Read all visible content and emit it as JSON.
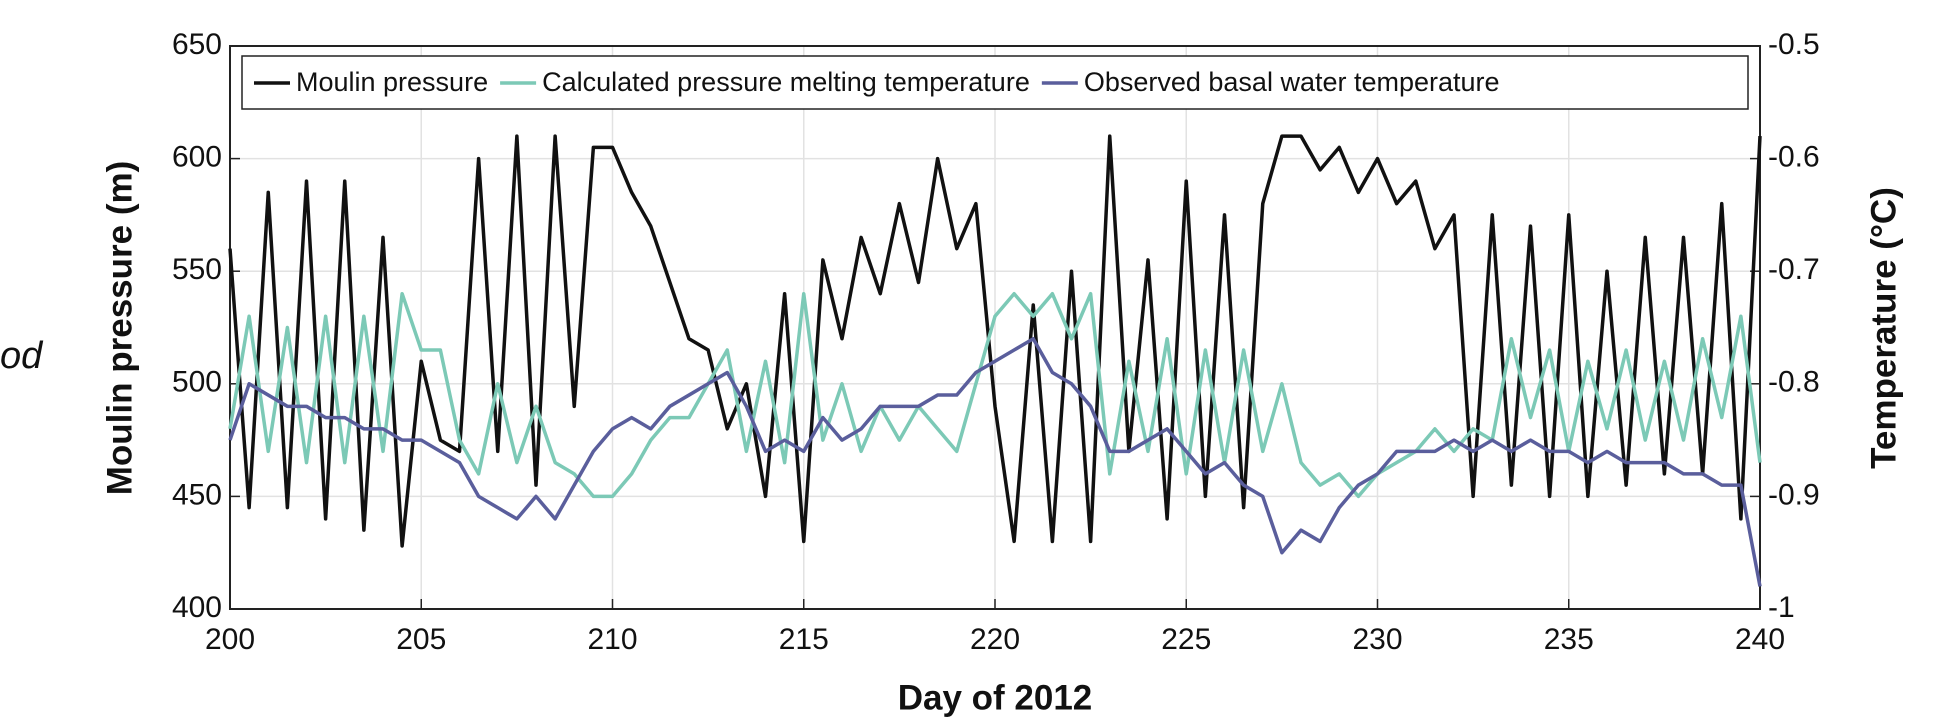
{
  "chart_data": {
    "type": "line",
    "side_text": "od",
    "xlabel": "Day of 2012",
    "ylabel": "Moulin pressure (m)",
    "y2label": "Temperature (°C)",
    "xlim": [
      200,
      240
    ],
    "xticks": [
      200,
      205,
      210,
      215,
      220,
      225,
      230,
      235,
      240
    ],
    "ylim": [
      400,
      650
    ],
    "yticks": [
      400,
      450,
      500,
      550,
      600,
      650
    ],
    "y2lim": [
      -1,
      -0.5
    ],
    "y2ticks": [
      -1,
      -0.9,
      -0.8,
      -0.7,
      -0.6,
      -0.5
    ],
    "grid": true,
    "legend": "top",
    "x": [
      200,
      200.5,
      201,
      201.5,
      202,
      202.5,
      203,
      203.5,
      204,
      204.5,
      205,
      205.5,
      206,
      206.5,
      207,
      207.5,
      208,
      208.5,
      209,
      209.5,
      210,
      210.5,
      211,
      211.5,
      212,
      212.5,
      213,
      213.5,
      214,
      214.5,
      215,
      215.5,
      216,
      216.5,
      217,
      217.5,
      218,
      218.5,
      219,
      219.5,
      220,
      220.5,
      221,
      221.5,
      222,
      222.5,
      223,
      223.5,
      224,
      224.5,
      225,
      225.5,
      226,
      226.5,
      227,
      227.5,
      228,
      228.5,
      229,
      229.5,
      230,
      230.5,
      231,
      231.5,
      232,
      232.5,
      233,
      233.5,
      234,
      234.5,
      235,
      235.5,
      236,
      236.5,
      237,
      237.5,
      238,
      238.5,
      239,
      239.5,
      240
    ],
    "series": [
      {
        "name": "Moulin pressure",
        "color": "#111111",
        "values": [
          560,
          445,
          585,
          445,
          590,
          440,
          590,
          435,
          565,
          428,
          510,
          475,
          470,
          600,
          470,
          610,
          455,
          610,
          490,
          605,
          605,
          585,
          570,
          545,
          520,
          515,
          480,
          500,
          450,
          540,
          430,
          555,
          520,
          565,
          540,
          580,
          545,
          600,
          560,
          580,
          490,
          430,
          535,
          430,
          550,
          430,
          610,
          470,
          555,
          440,
          590,
          450,
          575,
          445,
          580,
          610,
          610,
          595,
          605,
          585,
          600,
          580,
          590,
          560,
          575,
          450,
          575,
          455,
          570,
          450,
          575,
          450,
          550,
          455,
          565,
          460,
          565,
          460,
          580,
          440,
          610
        ]
      },
      {
        "name": "Calculated pressure melting temperature",
        "color": "#7cc9b6",
        "axis": "y2",
        "values": [
          -0.84,
          -0.74,
          -0.86,
          -0.75,
          -0.87,
          -0.74,
          -0.87,
          -0.74,
          -0.86,
          -0.72,
          -0.77,
          -0.77,
          -0.85,
          -0.88,
          -0.8,
          -0.87,
          -0.82,
          -0.87,
          -0.88,
          -0.9,
          -0.9,
          -0.88,
          -0.85,
          -0.83,
          -0.83,
          -0.8,
          -0.77,
          -0.86,
          -0.78,
          -0.87,
          -0.72,
          -0.85,
          -0.8,
          -0.86,
          -0.82,
          -0.85,
          -0.82,
          -0.84,
          -0.86,
          -0.8,
          -0.74,
          -0.72,
          -0.74,
          -0.72,
          -0.76,
          -0.72,
          -0.88,
          -0.78,
          -0.86,
          -0.76,
          -0.88,
          -0.77,
          -0.87,
          -0.77,
          -0.86,
          -0.8,
          -0.87,
          -0.89,
          -0.88,
          -0.9,
          -0.88,
          -0.87,
          -0.86,
          -0.84,
          -0.86,
          -0.84,
          -0.85,
          -0.76,
          -0.83,
          -0.77,
          -0.86,
          -0.78,
          -0.84,
          -0.77,
          -0.85,
          -0.78,
          -0.85,
          -0.76,
          -0.83,
          -0.74,
          -0.87
        ]
      },
      {
        "name": "Observed basal water temperature",
        "color": "#5a5e9c",
        "axis": "y2",
        "values": [
          -0.85,
          -0.8,
          -0.81,
          -0.82,
          -0.82,
          -0.83,
          -0.83,
          -0.84,
          -0.84,
          -0.85,
          -0.85,
          -0.86,
          -0.87,
          -0.9,
          -0.91,
          -0.92,
          -0.9,
          -0.92,
          -0.89,
          -0.86,
          -0.84,
          -0.83,
          -0.84,
          -0.82,
          -0.81,
          -0.8,
          -0.79,
          -0.82,
          -0.86,
          -0.85,
          -0.86,
          -0.83,
          -0.85,
          -0.84,
          -0.82,
          -0.82,
          -0.82,
          -0.81,
          -0.81,
          -0.79,
          -0.78,
          -0.77,
          -0.76,
          -0.79,
          -0.8,
          -0.82,
          -0.86,
          -0.86,
          -0.85,
          -0.84,
          -0.86,
          -0.88,
          -0.87,
          -0.89,
          -0.9,
          -0.95,
          -0.93,
          -0.94,
          -0.91,
          -0.89,
          -0.88,
          -0.86,
          -0.86,
          -0.86,
          -0.85,
          -0.86,
          -0.85,
          -0.86,
          -0.85,
          -0.86,
          -0.86,
          -0.87,
          -0.86,
          -0.87,
          -0.87,
          -0.87,
          -0.88,
          -0.88,
          -0.89,
          -0.89,
          -0.98
        ]
      }
    ]
  }
}
